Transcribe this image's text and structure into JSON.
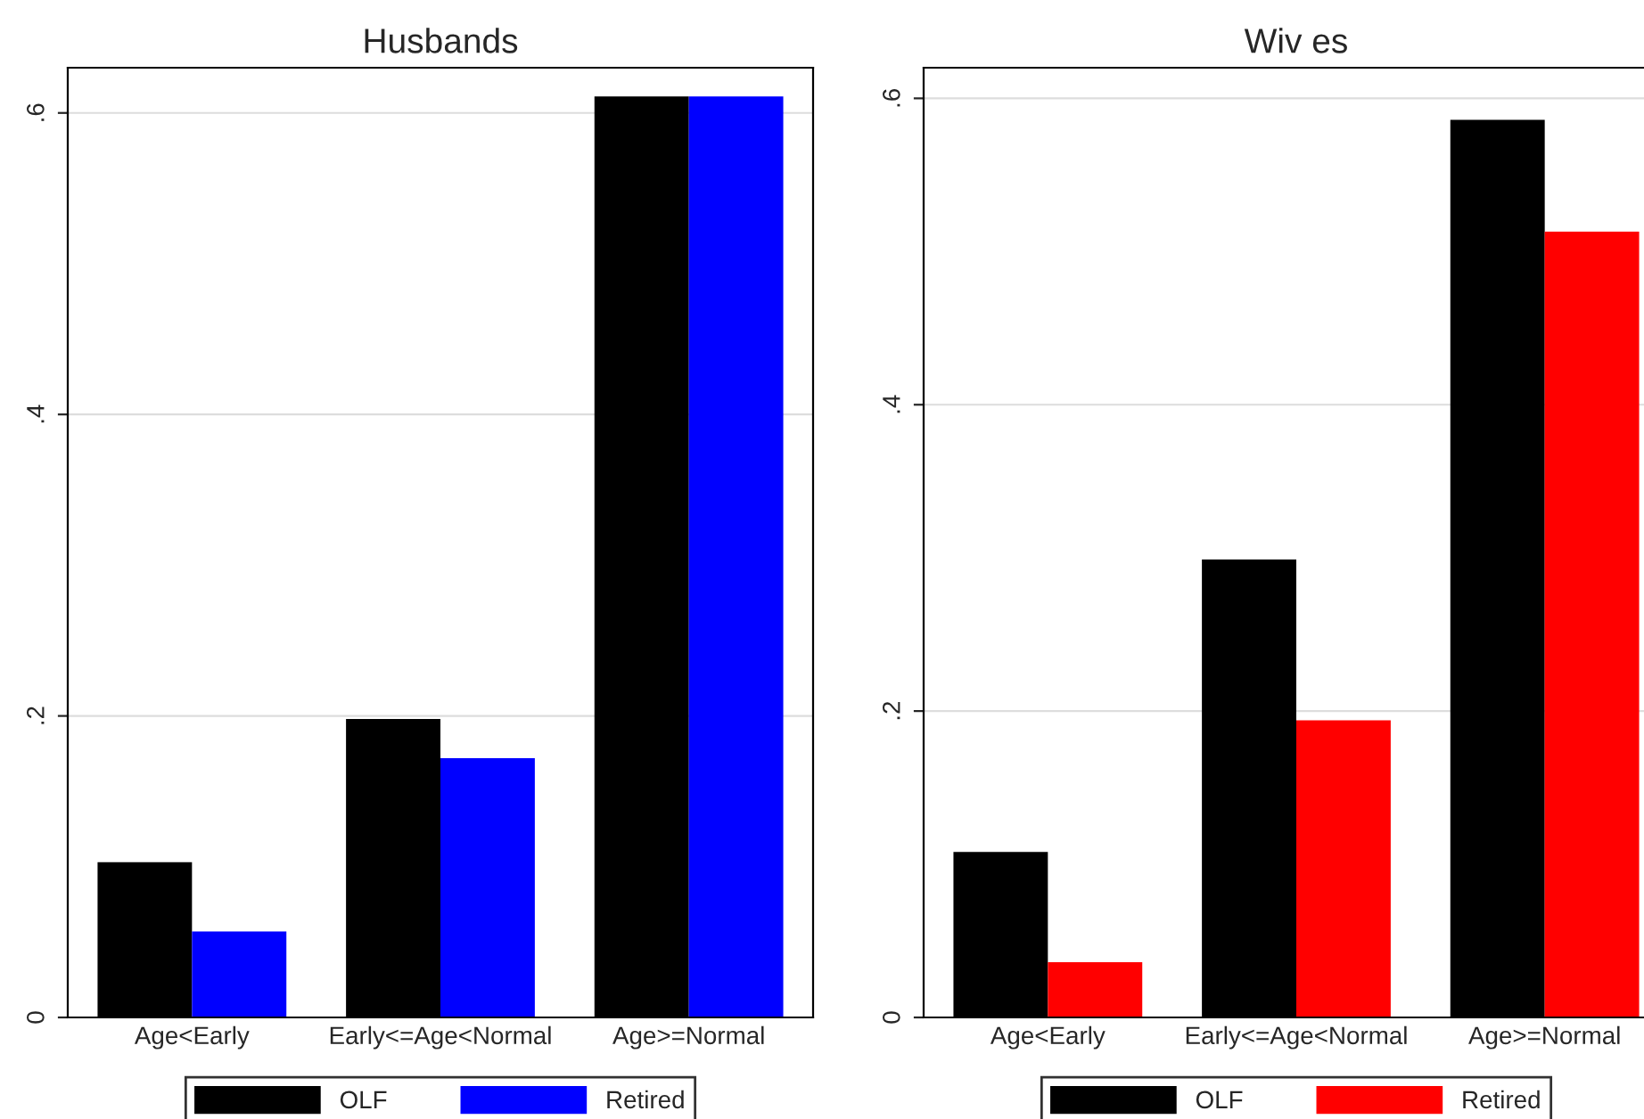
{
  "chart_data": [
    {
      "type": "bar",
      "title": "Husbands",
      "categories": [
        "Age<Early",
        "Early<=Age<Normal",
        "Age>=Normal"
      ],
      "series": [
        {
          "name": "OLF",
          "color": "#000000",
          "values": [
            0.103,
            0.198,
            0.611
          ]
        },
        {
          "name": "Retired",
          "color": "#0000ff",
          "values": [
            0.057,
            0.172,
            0.611
          ]
        }
      ],
      "ylim": [
        0,
        0.63
      ],
      "yticks": [
        {
          "value": 0,
          "label": "0"
        },
        {
          "value": 0.2,
          "label": ".2"
        },
        {
          "value": 0.4,
          "label": ".4"
        },
        {
          "value": 0.6,
          "label": ".6"
        }
      ],
      "grid": "y",
      "legend": "bottom"
    },
    {
      "type": "bar",
      "title": "Wiv es",
      "categories": [
        "Age<Early",
        "Early<=Age<Normal",
        "Age>=Normal"
      ],
      "series": [
        {
          "name": "OLF",
          "color": "#000000",
          "values": [
            0.108,
            0.299,
            0.586
          ]
        },
        {
          "name": "Retired",
          "color": "#ff0000",
          "values": [
            0.036,
            0.194,
            0.513
          ]
        }
      ],
      "ylim": [
        0,
        0.62
      ],
      "yticks": [
        {
          "value": 0,
          "label": "0"
        },
        {
          "value": 0.2,
          "label": ".2"
        },
        {
          "value": 0.4,
          "label": ".4"
        },
        {
          "value": 0.6,
          "label": ".6"
        }
      ],
      "grid": "y",
      "legend": "bottom"
    }
  ]
}
